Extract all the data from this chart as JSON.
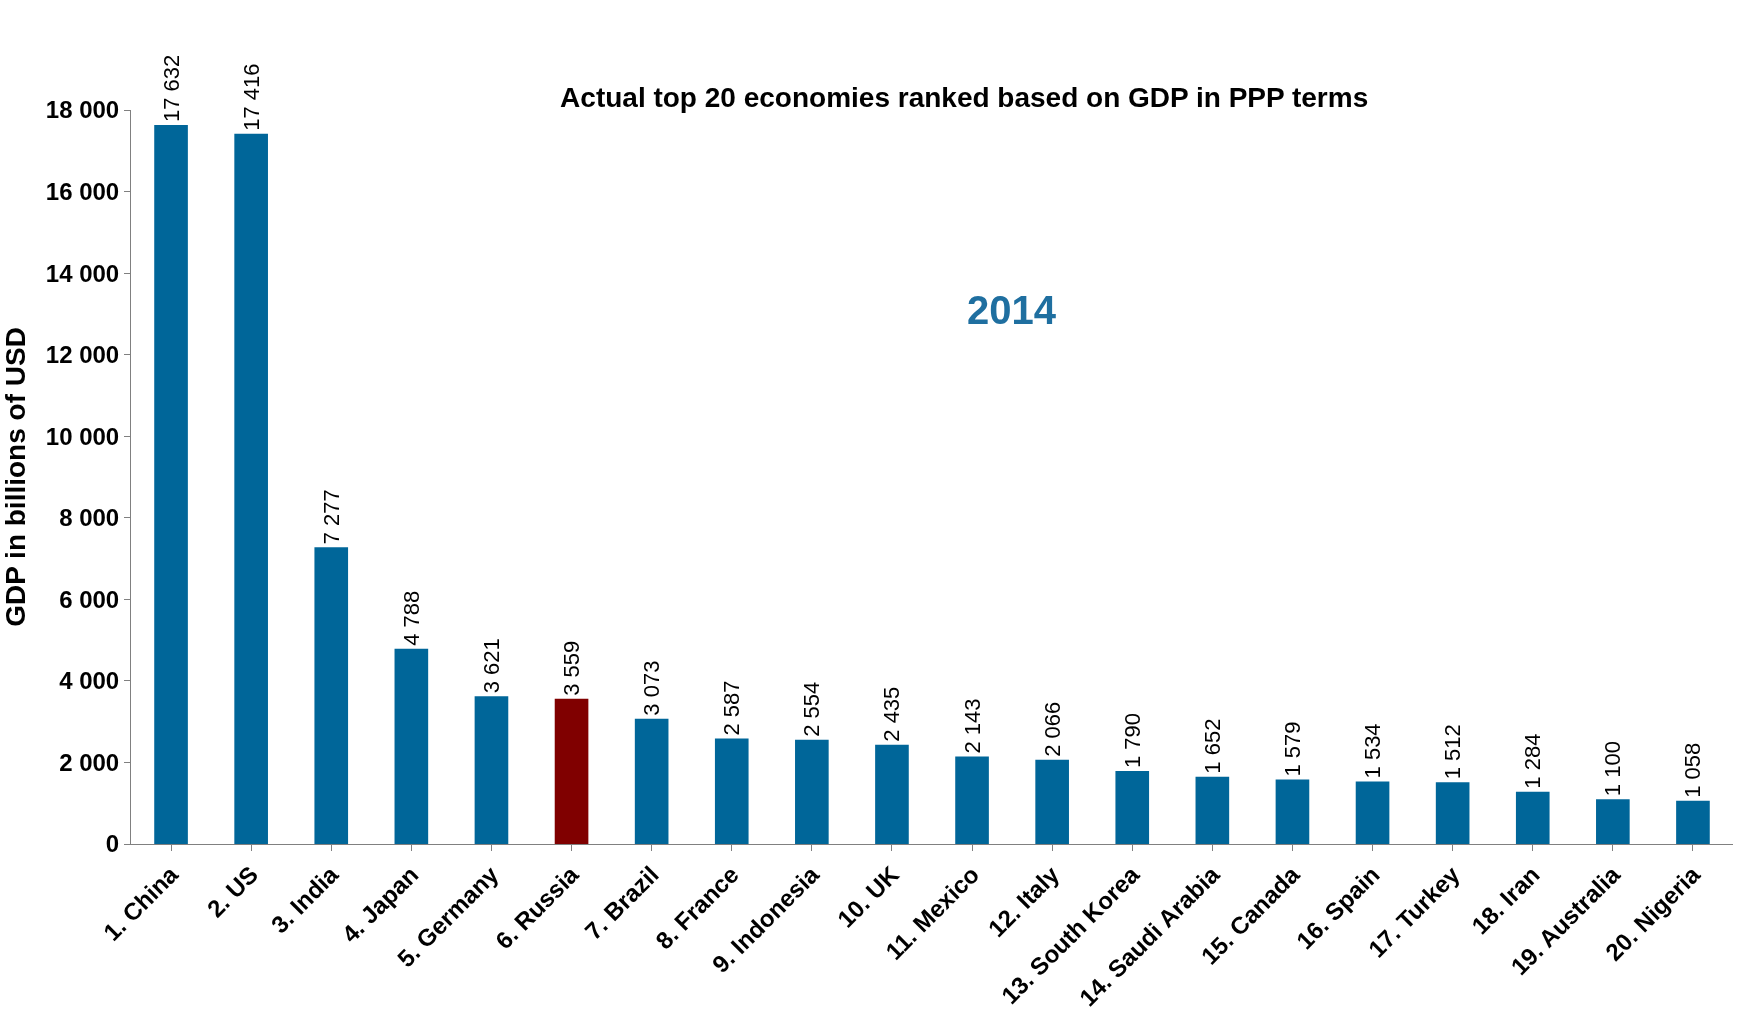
{
  "chart_data": {
    "type": "bar",
    "title": "Actual top 20 economies ranked based on GDP in PPP terms",
    "ylabel": "GDP in billions of USD",
    "annotations": [
      "2014"
    ],
    "categories": [
      "1. China",
      "2. US",
      "3. India",
      "4. Japan",
      "5. Germany",
      "6. Russia",
      "7. Brazil",
      "8. France",
      "9. Indonesia",
      "10. UK",
      "11. Mexico",
      "12. Italy",
      "13. South Korea",
      "14. Saudi Arabia",
      "15. Canada",
      "16. Spain",
      "17. Turkey",
      "18. Iran",
      "19. Australia",
      "20. Nigeria"
    ],
    "values": [
      17632,
      17416,
      7277,
      4788,
      3621,
      3559,
      3073,
      2587,
      2554,
      2435,
      2143,
      2066,
      1790,
      1652,
      1579,
      1534,
      1512,
      1284,
      1100,
      1058
    ],
    "value_labels": [
      "17 632",
      "17 416",
      "7 277",
      "4 788",
      "3 621",
      "3 559",
      "3 073",
      "2 587",
      "2 554",
      "2 435",
      "2 143",
      "2 066",
      "1 790",
      "1 652",
      "1 579",
      "1 534",
      "1 512",
      "1 284",
      "1 100",
      "1 058"
    ],
    "colors": [
      "#006699",
      "#006699",
      "#006699",
      "#006699",
      "#006699",
      "#800000",
      "#006699",
      "#006699",
      "#006699",
      "#006699",
      "#006699",
      "#006699",
      "#006699",
      "#006699",
      "#006699",
      "#006699",
      "#006699",
      "#006699",
      "#006699",
      "#006699"
    ],
    "ylim": [
      0,
      18000
    ],
    "yticks": [
      0,
      {
        "value": 2000,
        "label": "2 000"
      },
      {
        "value": 4000,
        "label": "4 000"
      },
      {
        "value": 6000,
        "label": "6 000"
      },
      {
        "value": 8000,
        "label": "8 000"
      },
      {
        "value": 10000,
        "label": "10 000"
      },
      {
        "value": 12000,
        "label": "12 000"
      },
      {
        "value": 14000,
        "label": "14 000"
      },
      {
        "value": 16000,
        "label": "16 000"
      },
      {
        "value": 18000,
        "label": "18 000"
      }
    ]
  }
}
